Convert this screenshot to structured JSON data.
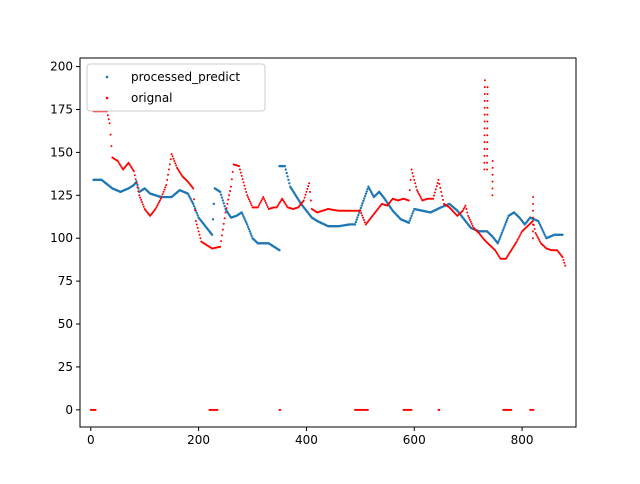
{
  "chart_data": {
    "type": "scatter",
    "title": "",
    "xlabel": "",
    "ylabel": "",
    "xlim": [
      -20,
      900
    ],
    "ylim": [
      -10,
      205
    ],
    "xticks": [
      0,
      200,
      400,
      600,
      800
    ],
    "yticks": [
      0,
      25,
      50,
      75,
      100,
      125,
      150,
      175,
      200
    ],
    "grid": false,
    "legend": {
      "position": "top-left"
    },
    "series": [
      {
        "name": "processed_predict",
        "color": "#1f77b4",
        "anchors": [
          [
            5,
            134
          ],
          [
            20,
            134
          ],
          [
            40,
            129
          ],
          [
            55,
            127
          ],
          [
            70,
            129
          ],
          [
            80,
            131
          ],
          [
            85,
            133
          ],
          [
            90,
            127
          ],
          [
            100,
            129
          ],
          [
            110,
            126
          ],
          [
            130,
            124
          ],
          [
            150,
            124
          ],
          [
            165,
            128
          ],
          [
            180,
            126
          ],
          [
            190,
            120
          ],
          [
            200,
            112
          ],
          [
            215,
            106
          ],
          [
            225,
            102
          ],
          [
            230,
            129
          ],
          [
            240,
            127
          ],
          [
            250,
            117
          ],
          [
            260,
            112
          ],
          [
            270,
            113
          ],
          [
            280,
            115
          ],
          [
            290,
            108
          ],
          [
            300,
            100
          ],
          [
            310,
            97
          ],
          [
            330,
            97
          ],
          [
            350,
            93
          ],
          [
            350,
            142
          ],
          [
            360,
            142
          ],
          [
            370,
            130
          ],
          [
            390,
            120
          ],
          [
            410,
            112
          ],
          [
            420,
            110
          ],
          [
            440,
            107
          ],
          [
            460,
            107
          ],
          [
            480,
            108
          ],
          [
            490,
            108
          ],
          [
            515,
            130
          ],
          [
            525,
            124
          ],
          [
            535,
            127
          ],
          [
            545,
            123
          ],
          [
            560,
            116
          ],
          [
            575,
            111
          ],
          [
            590,
            109
          ],
          [
            600,
            117
          ],
          [
            615,
            116
          ],
          [
            630,
            115
          ],
          [
            650,
            118
          ],
          [
            665,
            120
          ],
          [
            680,
            116
          ],
          [
            695,
            110
          ],
          [
            705,
            106
          ],
          [
            720,
            104
          ],
          [
            735,
            104
          ],
          [
            745,
            101
          ],
          [
            755,
            97
          ],
          [
            775,
            113
          ],
          [
            785,
            115
          ],
          [
            795,
            112
          ],
          [
            805,
            108
          ],
          [
            815,
            112
          ],
          [
            830,
            110
          ],
          [
            845,
            100
          ],
          [
            860,
            102
          ],
          [
            875,
            102
          ]
        ]
      },
      {
        "name": "orignal",
        "color": "#ff0000",
        "anchors": [
          [
            5,
            174
          ],
          [
            30,
            174
          ],
          [
            35,
            167
          ],
          [
            40,
            147
          ],
          [
            50,
            145
          ],
          [
            60,
            140
          ],
          [
            70,
            144
          ],
          [
            80,
            139
          ],
          [
            90,
            125
          ],
          [
            100,
            117
          ],
          [
            110,
            113
          ],
          [
            120,
            117
          ],
          [
            130,
            123
          ],
          [
            140,
            131
          ],
          [
            150,
            149
          ],
          [
            160,
            141
          ],
          [
            170,
            136
          ],
          [
            180,
            133
          ],
          [
            190,
            129
          ],
          [
            195,
            110
          ],
          [
            205,
            98
          ],
          [
            215,
            96
          ],
          [
            225,
            94
          ],
          [
            240,
            95
          ],
          [
            250,
            115
          ],
          [
            260,
            130
          ],
          [
            265,
            143
          ],
          [
            275,
            142
          ],
          [
            290,
            125
          ],
          [
            300,
            118
          ],
          [
            310,
            118
          ],
          [
            320,
            124
          ],
          [
            330,
            117
          ],
          [
            340,
            118
          ],
          [
            345,
            118
          ],
          [
            355,
            123
          ],
          [
            365,
            118
          ],
          [
            375,
            117
          ],
          [
            385,
            118
          ],
          [
            395,
            122
          ],
          [
            405,
            132
          ],
          [
            410,
            117
          ],
          [
            420,
            115
          ],
          [
            440,
            117
          ],
          [
            460,
            116
          ],
          [
            480,
            116
          ],
          [
            500,
            116
          ],
          [
            510,
            108
          ],
          [
            520,
            112
          ],
          [
            530,
            116
          ],
          [
            540,
            120
          ],
          [
            550,
            119
          ],
          [
            560,
            123
          ],
          [
            570,
            122
          ],
          [
            580,
            123
          ],
          [
            590,
            122
          ],
          [
            595,
            140
          ],
          [
            605,
            128
          ],
          [
            615,
            122
          ],
          [
            625,
            123
          ],
          [
            635,
            123
          ],
          [
            645,
            134
          ],
          [
            655,
            120
          ],
          [
            665,
            118
          ],
          [
            680,
            113
          ],
          [
            690,
            116
          ],
          [
            695,
            119
          ],
          [
            700,
            113
          ],
          [
            710,
            106
          ],
          [
            720,
            103
          ],
          [
            730,
            99
          ],
          [
            740,
            96
          ],
          [
            750,
            93
          ],
          [
            760,
            88
          ],
          [
            770,
            88
          ],
          [
            790,
            98
          ],
          [
            800,
            104
          ],
          [
            810,
            107
          ],
          [
            820,
            110
          ],
          [
            825,
            103
          ],
          [
            835,
            97
          ],
          [
            845,
            94
          ],
          [
            855,
            93
          ],
          [
            865,
            93
          ],
          [
            875,
            89
          ],
          [
            880,
            84
          ]
        ],
        "spikes": [
          [
            730,
            140,
            195
          ],
          [
            735,
            140,
            190
          ],
          [
            745,
            125,
            145
          ],
          [
            820,
            100,
            126
          ]
        ],
        "zeros": [
          [
            0,
            10
          ],
          [
            220,
            235
          ],
          [
            350,
            352
          ],
          [
            490,
            515
          ],
          [
            580,
            595
          ],
          [
            645,
            647
          ],
          [
            765,
            780
          ],
          [
            815,
            822
          ]
        ]
      }
    ]
  }
}
